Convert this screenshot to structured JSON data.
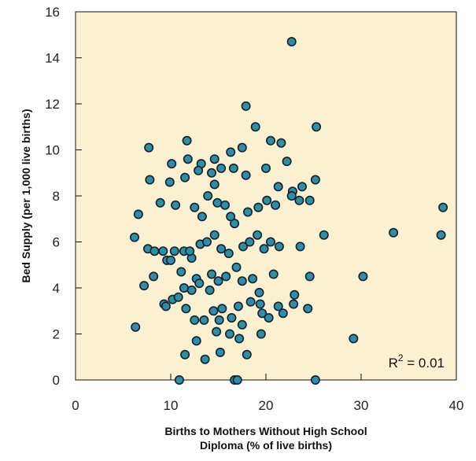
{
  "chart_data": {
    "type": "scatter",
    "title": "",
    "xlabel_lines": [
      "Births to Mothers Without High School",
      "Diploma (% of live births)"
    ],
    "ylabel": "Bed Supply (per 1,000 live births)",
    "xlim": [
      0,
      40
    ],
    "ylim": [
      0,
      16
    ],
    "xticks": [
      0,
      10,
      20,
      30,
      40
    ],
    "yticks": [
      0,
      2,
      4,
      6,
      8,
      10,
      12,
      14,
      16
    ],
    "annotation": {
      "prefix": "R",
      "sup": "2",
      "suffix": " = 0.01"
    },
    "grid": false,
    "colors": {
      "plot_background": "#fbf0cf",
      "marker_fill": "#2f8ea6",
      "marker_stroke": "#102030",
      "axis": "#111111"
    },
    "points": [
      [
        22.7,
        14.7
      ],
      [
        17.9,
        11.9
      ],
      [
        11.7,
        10.4
      ],
      [
        7.7,
        10.1
      ],
      [
        18.9,
        11.0
      ],
      [
        25.3,
        11.0
      ],
      [
        20.5,
        10.4
      ],
      [
        21.6,
        10.3
      ],
      [
        10.1,
        9.4
      ],
      [
        11.8,
        9.6
      ],
      [
        13.2,
        9.4
      ],
      [
        14.6,
        9.6
      ],
      [
        15.3,
        9.2
      ],
      [
        16.3,
        9.9
      ],
      [
        17.5,
        10.1
      ],
      [
        14.3,
        9.0
      ],
      [
        16.6,
        9.2
      ],
      [
        7.8,
        8.7
      ],
      [
        9.9,
        8.6
      ],
      [
        11.5,
        8.8
      ],
      [
        12.9,
        9.1
      ],
      [
        17.9,
        8.9
      ],
      [
        21.3,
        8.4
      ],
      [
        22.2,
        9.5
      ],
      [
        20.0,
        9.2
      ],
      [
        22.8,
        8.2
      ],
      [
        25.2,
        8.7
      ],
      [
        23.8,
        8.4
      ],
      [
        6.6,
        7.2
      ],
      [
        8.9,
        7.7
      ],
      [
        10.5,
        7.6
      ],
      [
        12.5,
        7.5
      ],
      [
        13.9,
        8.0
      ],
      [
        14.9,
        7.7
      ],
      [
        15.7,
        7.6
      ],
      [
        16.3,
        7.1
      ],
      [
        14.6,
        8.5
      ],
      [
        13.3,
        7.1
      ],
      [
        18.1,
        7.3
      ],
      [
        19.2,
        7.5
      ],
      [
        20.1,
        7.8
      ],
      [
        21.0,
        7.6
      ],
      [
        22.7,
        8.0
      ],
      [
        23.5,
        7.8
      ],
      [
        24.6,
        7.8
      ],
      [
        38.6,
        7.5
      ],
      [
        6.2,
        6.2
      ],
      [
        7.6,
        5.7
      ],
      [
        8.2,
        4.5
      ],
      [
        9.6,
        5.2
      ],
      [
        10.4,
        5.6
      ],
      [
        11.4,
        5.6
      ],
      [
        12.2,
        5.3
      ],
      [
        13.1,
        5.9
      ],
      [
        13.8,
        6.0
      ],
      [
        14.6,
        6.3
      ],
      [
        15.3,
        5.7
      ],
      [
        16.1,
        5.5
      ],
      [
        16.7,
        6.8
      ],
      [
        17.6,
        5.8
      ],
      [
        18.3,
        6.0
      ],
      [
        19.1,
        6.3
      ],
      [
        19.8,
        5.7
      ],
      [
        20.5,
        6.0
      ],
      [
        21.4,
        5.8
      ],
      [
        23.6,
        5.8
      ],
      [
        26.1,
        6.3
      ],
      [
        33.4,
        6.4
      ],
      [
        38.4,
        6.3
      ],
      [
        8.3,
        5.6
      ],
      [
        9.2,
        5.6
      ],
      [
        10.0,
        5.2
      ],
      [
        11.1,
        4.7
      ],
      [
        12.0,
        5.6
      ],
      [
        12.7,
        4.4
      ],
      [
        14.3,
        4.6
      ],
      [
        15.0,
        4.3
      ],
      [
        15.8,
        4.5
      ],
      [
        16.9,
        4.9
      ],
      [
        17.5,
        4.3
      ],
      [
        18.6,
        4.4
      ],
      [
        19.3,
        3.8
      ],
      [
        20.8,
        4.6
      ],
      [
        23.0,
        3.7
      ],
      [
        24.6,
        4.5
      ],
      [
        7.2,
        4.1
      ],
      [
        9.3,
        3.3
      ],
      [
        10.2,
        3.5
      ],
      [
        11.4,
        4.0
      ],
      [
        12.2,
        3.9
      ],
      [
        13.0,
        4.2
      ],
      [
        14.1,
        3.9
      ],
      [
        15.4,
        3.1
      ],
      [
        17.1,
        3.2
      ],
      [
        18.4,
        3.4
      ],
      [
        19.4,
        3.3
      ],
      [
        21.3,
        3.2
      ],
      [
        22.9,
        3.3
      ],
      [
        24.4,
        3.1
      ],
      [
        30.2,
        4.5
      ],
      [
        9.5,
        3.2
      ],
      [
        10.8,
        3.6
      ],
      [
        11.6,
        3.1
      ],
      [
        12.5,
        2.6
      ],
      [
        13.5,
        2.6
      ],
      [
        14.5,
        3.0
      ],
      [
        15.1,
        2.6
      ],
      [
        16.4,
        2.7
      ],
      [
        17.5,
        2.4
      ],
      [
        19.6,
        2.9
      ],
      [
        20.3,
        2.7
      ],
      [
        21.8,
        2.9
      ],
      [
        6.3,
        2.3
      ],
      [
        12.7,
        1.7
      ],
      [
        14.8,
        2.1
      ],
      [
        16.2,
        2.0
      ],
      [
        17.2,
        1.8
      ],
      [
        18.0,
        1.1
      ],
      [
        19.5,
        2.0
      ],
      [
        11.5,
        1.1
      ],
      [
        13.6,
        0.9
      ],
      [
        15.2,
        1.2
      ],
      [
        29.2,
        1.8
      ],
      [
        10.9,
        0.0
      ],
      [
        16.7,
        0.0
      ],
      [
        17.0,
        0.0
      ],
      [
        25.2,
        0.0
      ]
    ]
  }
}
